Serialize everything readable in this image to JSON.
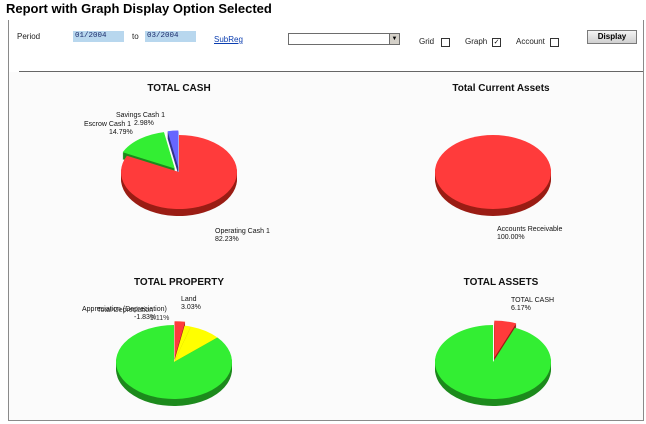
{
  "page": {
    "title": "Report with Graph Display Option Selected"
  },
  "filters": {
    "period_label": "Period",
    "from_value": "01/2004",
    "to_label": "to",
    "to_value": "03/2004",
    "subreg_link": "SubReg",
    "subreg_select_value": "",
    "grid_label": "Grid",
    "grid_checked": "",
    "graph_label": "Graph",
    "graph_checked": "✓",
    "account_label": "Account",
    "account_checked": "",
    "display_button": "Display"
  },
  "charts": [
    {
      "title": "TOTAL CASH",
      "slices": [
        {
          "name": "Operating Cash 1",
          "value": 82.23,
          "label": "82.23%",
          "color": "#ff3b3b",
          "shadow": "#9a1d14"
        },
        {
          "name": "Escrow Cash 1",
          "value": 14.79,
          "label": "14.79%",
          "color": "#33ee33",
          "shadow": "#1d8a1d"
        },
        {
          "name": "Savings Cash 1",
          "value": 2.98,
          "label": "2.98%",
          "color": "#6666ff",
          "shadow": "#33338a"
        }
      ]
    },
    {
      "title": "Total Current Assets",
      "slices": [
        {
          "name": "Accounts Receivable",
          "value": 100.0,
          "label": "100.00%",
          "color": "#ff3b3b",
          "shadow": "#9a1d14"
        }
      ]
    },
    {
      "title": "TOTAL PROPERTY",
      "slices": [
        {
          "name": "Land",
          "value": 3.03,
          "label": "3.03%",
          "color": "#ff3b3b",
          "shadow": "#9a1d14"
        },
        {
          "name": "Appreciation (Depreciation)",
          "value": -1.83,
          "label": "-1.83%",
          "color": "#ffff00",
          "shadow": "#8a8a00"
        },
        {
          "name": "Total Depreciation",
          "value": 9.11,
          "label": "9.11%",
          "color": "#ffff00",
          "shadow": "#8a8a00"
        },
        {
          "name": "",
          "value": 89.69,
          "label": "",
          "color": "#33ee33",
          "shadow": "#1d8a1d"
        }
      ]
    },
    {
      "title": "TOTAL ASSETS",
      "slices": [
        {
          "name": "TOTAL CASH",
          "value": 6.17,
          "label": "6.17%",
          "color": "#ff3b3b",
          "shadow": "#9a1d14"
        },
        {
          "name": "",
          "value": 93.83,
          "label": "",
          "color": "#33ee33",
          "shadow": "#1d8a1d"
        }
      ]
    }
  ]
}
